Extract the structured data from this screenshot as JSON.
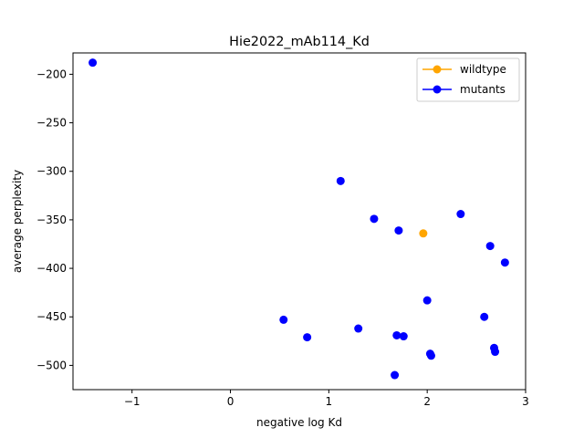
{
  "chart_data": {
    "type": "scatter",
    "title": "Hie2022_mAb114_Kd",
    "xlabel": "negative log Kd",
    "ylabel": "average perplexity",
    "xlim": [
      -1.6,
      3.0
    ],
    "ylim": [
      -525,
      -178
    ],
    "xticks": [
      -1,
      0,
      1,
      2,
      3
    ],
    "xtick_labels": [
      "−1",
      "0",
      "1",
      "2",
      "3"
    ],
    "yticks": [
      -200,
      -250,
      -300,
      -350,
      -400,
      -450,
      -500
    ],
    "ytick_labels": [
      "−200",
      "−250",
      "−300",
      "−350",
      "−400",
      "−450",
      "−500"
    ],
    "grid": false,
    "legend": "top-right",
    "series": [
      {
        "name": "wildtype",
        "color": "#ffa500",
        "points": [
          {
            "x": 1.96,
            "y": -364
          }
        ]
      },
      {
        "name": "mutants",
        "color": "#0000ff",
        "points": [
          {
            "x": -1.4,
            "y": -188
          },
          {
            "x": 1.12,
            "y": -310
          },
          {
            "x": 1.46,
            "y": -349
          },
          {
            "x": 1.71,
            "y": -361
          },
          {
            "x": 2.34,
            "y": -344
          },
          {
            "x": 2.64,
            "y": -377
          },
          {
            "x": 2.79,
            "y": -394
          },
          {
            "x": 2.0,
            "y": -433
          },
          {
            "x": 2.58,
            "y": -450
          },
          {
            "x": 0.54,
            "y": -453
          },
          {
            "x": 1.3,
            "y": -462
          },
          {
            "x": 0.78,
            "y": -471
          },
          {
            "x": 1.69,
            "y": -469
          },
          {
            "x": 1.76,
            "y": -470
          },
          {
            "x": 2.03,
            "y": -488
          },
          {
            "x": 2.04,
            "y": -490
          },
          {
            "x": 2.68,
            "y": -482
          },
          {
            "x": 2.69,
            "y": -486
          },
          {
            "x": 1.67,
            "y": -510
          }
        ]
      }
    ]
  }
}
